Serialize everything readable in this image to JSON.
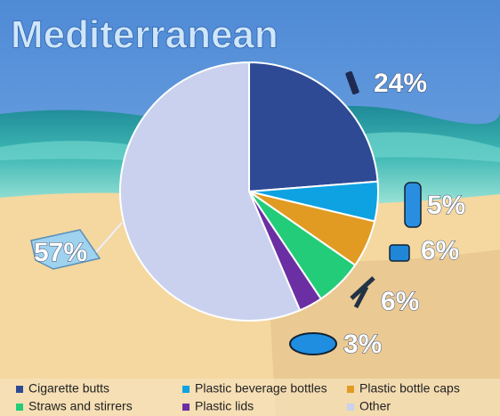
{
  "chart_data": {
    "type": "pie",
    "title": "Mediterranean",
    "categories": [
      "Cigarette butts",
      "Plastic beverage bottles",
      "Plastic bottle caps",
      "Straws and stirrers",
      "Plastic lids",
      "Other"
    ],
    "values": [
      24,
      5,
      6,
      6,
      3,
      57
    ],
    "value_labels": [
      "24%",
      "5%",
      "6%",
      "6%",
      "3%",
      "57%"
    ],
    "colors": [
      "#2e4a94",
      "#0ea2e2",
      "#e19b22",
      "#23cc78",
      "#6b2fa3",
      "#c9d1ee"
    ]
  }
}
